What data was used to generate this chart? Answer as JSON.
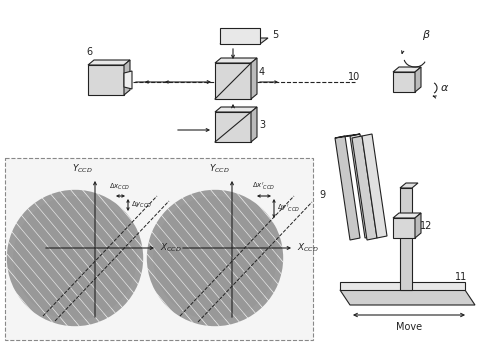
{
  "lc": "#222222",
  "gc": "#aaaaaa",
  "lgc": "#cccccc",
  "vlgc": "#dddddd",
  "stripe_color": "#888888",
  "bg": "white",
  "dashed_bg": "#f5f5f5"
}
